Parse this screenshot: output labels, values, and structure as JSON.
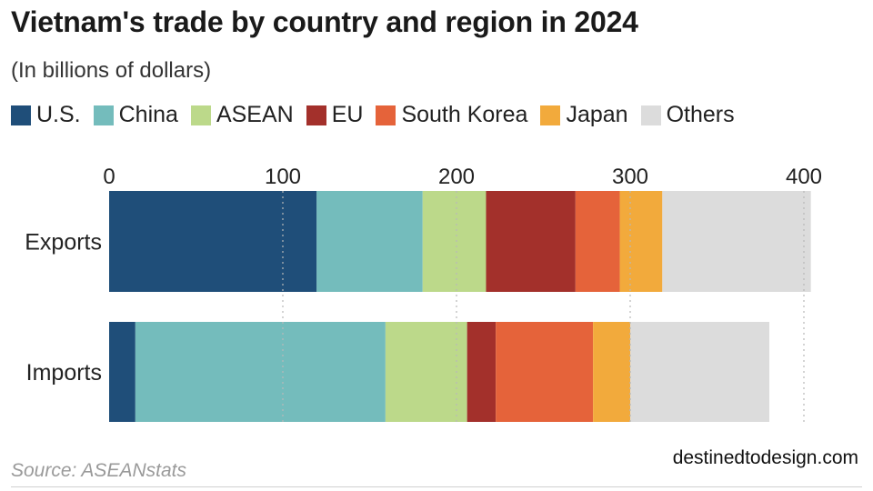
{
  "title": "Vietnam's trade by country and region in 2024",
  "subtitle": "(In billions of dollars)",
  "source": "Source: ASEANstats",
  "watermark": "destinedtodesign.com",
  "chart_data": {
    "type": "bar",
    "orientation": "horizontal",
    "stacked": true,
    "categories": [
      "Exports",
      "Imports"
    ],
    "series": [
      {
        "name": "U.S.",
        "color": "#1f4e79",
        "values": [
          119.5,
          15.1
        ]
      },
      {
        "name": "China",
        "color": "#74bcbc",
        "values": [
          61,
          144
        ]
      },
      {
        "name": "ASEAN",
        "color": "#bcd98a",
        "values": [
          36.5,
          47
        ]
      },
      {
        "name": "EU",
        "color": "#a3302b",
        "values": [
          51.5,
          16.5
        ]
      },
      {
        "name": "South Korea",
        "color": "#e5633a",
        "values": [
          25.5,
          56
        ]
      },
      {
        "name": "Japan",
        "color": "#f2aa3c",
        "values": [
          24.5,
          21.5
        ]
      },
      {
        "name": "Others",
        "color": "#dcdcdc",
        "values": [
          85.5,
          80
        ]
      }
    ],
    "x_ticks": [
      0,
      100,
      200,
      300,
      400
    ],
    "xlim": [
      0,
      400
    ],
    "grid": "vertical dotted",
    "legend_position": "top"
  }
}
